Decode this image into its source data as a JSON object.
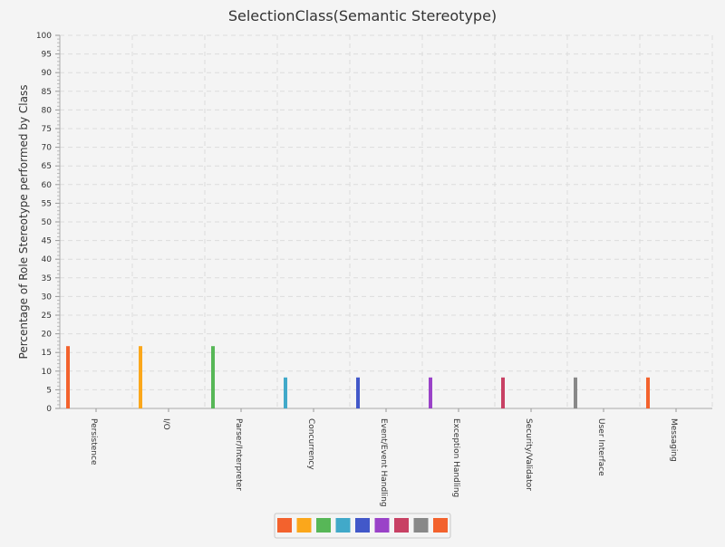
{
  "chart_data": {
    "type": "bar",
    "title": "SelectionClass(Semantic Stereotype)",
    "xlabel": "",
    "ylabel": "Percentage of Role Stereotype performed by Class",
    "ylim": [
      0,
      100
    ],
    "ytick_step": 5,
    "grid": true,
    "legend": "bottom",
    "categories": [
      "Persistence",
      "I/O",
      "Parser/Interpreter",
      "Concurrency",
      "Event/Event Handling",
      "Exception Handling",
      "Security/Validator",
      "User Interface",
      "Messaging"
    ],
    "values": [
      16.7,
      16.7,
      16.7,
      8.3,
      8.3,
      8.3,
      8.3,
      8.3,
      8.3
    ],
    "colors": [
      "#f3622d",
      "#fba71b",
      "#57b757",
      "#41a9c9",
      "#4258c9",
      "#9a42c8",
      "#c84164",
      "#888888",
      "#f3622d"
    ]
  }
}
